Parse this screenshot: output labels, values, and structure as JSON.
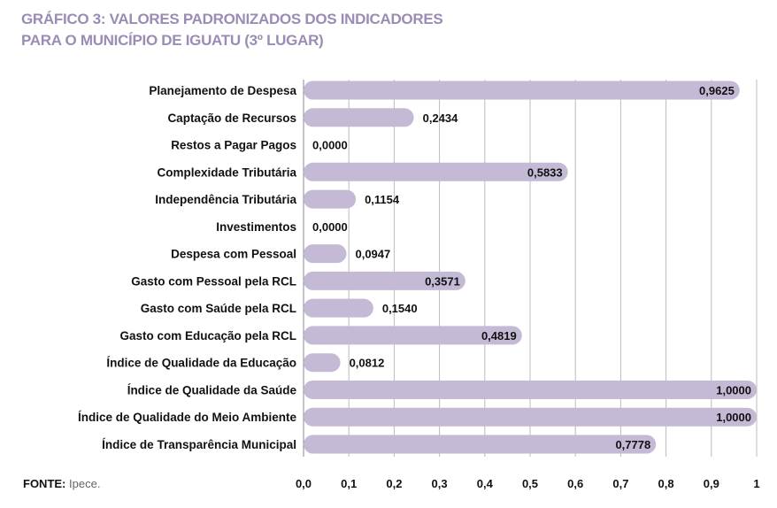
{
  "title": [
    "GRÁFICO 3: VALORES PADRONIZADOS DOS INDICADORES",
    "PARA O MUNICÍPIO DE IGUATU (3º LUGAR)"
  ],
  "source": {
    "label": "FONTE:",
    "text": "Ipece."
  },
  "chart_data": {
    "type": "bar",
    "orientation": "horizontal",
    "title": "GRÁFICO 3: VALORES PADRONIZADOS DOS INDICADORES PARA O MUNICÍPIO DE IGUATU (3º LUGAR)",
    "categories": [
      "Planejamento de Despesa",
      "Captação de Recursos",
      "Restos a Pagar Pagos",
      "Complexidade Tributária",
      "Independência Tributária",
      "Investimentos",
      "Despesa com Pessoal",
      "Gasto com Pessoal pela RCL",
      "Gasto com Saúde pela RCL",
      "Gasto com Educação pela RCL",
      "Índice de Qualidade da Educação",
      "Índice de Qualidade da Saúde",
      "Índice de Qualidade do Meio Ambiente",
      "Índice de Transparência Municipal"
    ],
    "values": [
      0.9625,
      0.2434,
      0.0,
      0.5833,
      0.1154,
      0.0,
      0.0947,
      0.3571,
      0.154,
      0.4819,
      0.0812,
      1.0,
      1.0,
      0.7778
    ],
    "data_labels": [
      "0,9625",
      "0,2434",
      "0,0000",
      "0,5833",
      "0,1154",
      "0,0000",
      "0,0947",
      "0,3571",
      "0,1540",
      "0,4819",
      "0,0812",
      "1,0000",
      "1,0000",
      "0,7778"
    ],
    "xlim": [
      0,
      1
    ],
    "xticks": [
      "0,0",
      "0,1",
      "0,2",
      "0,3",
      "0,4",
      "0,5",
      "0,6",
      "0,7",
      "0,8",
      "0,9",
      "1"
    ],
    "grid": true,
    "bar_color": "#c4bad6",
    "title_color": "#9a8cb5"
  }
}
